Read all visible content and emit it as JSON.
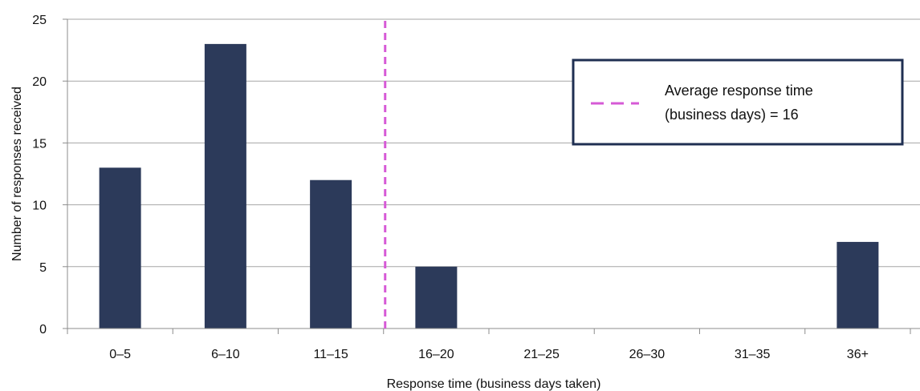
{
  "colors": {
    "bar": "#2c3a5a",
    "average_line": "#d65ad6",
    "gridline": "#a6a6a6",
    "axis": "#8c8c8c",
    "legend_border": "#1f2f52"
  },
  "chart_data": {
    "type": "bar",
    "categories": [
      "0–5",
      "6–10",
      "11–15",
      "16–20",
      "21–25",
      "26–30",
      "31–35",
      "36+"
    ],
    "values": [
      13,
      23,
      12,
      5,
      0,
      0,
      0,
      7
    ],
    "xlabel": "Response time (business days taken)",
    "ylabel": "Number of responses received",
    "ylim": [
      0,
      25
    ],
    "yticks": [
      0,
      5,
      10,
      15,
      20,
      25
    ],
    "grid": true,
    "average_line": {
      "value": 16,
      "style": "dashed",
      "legend_line1": "Average response time",
      "legend_line2": "(business days) = 16"
    },
    "legend_position": "top-right"
  }
}
